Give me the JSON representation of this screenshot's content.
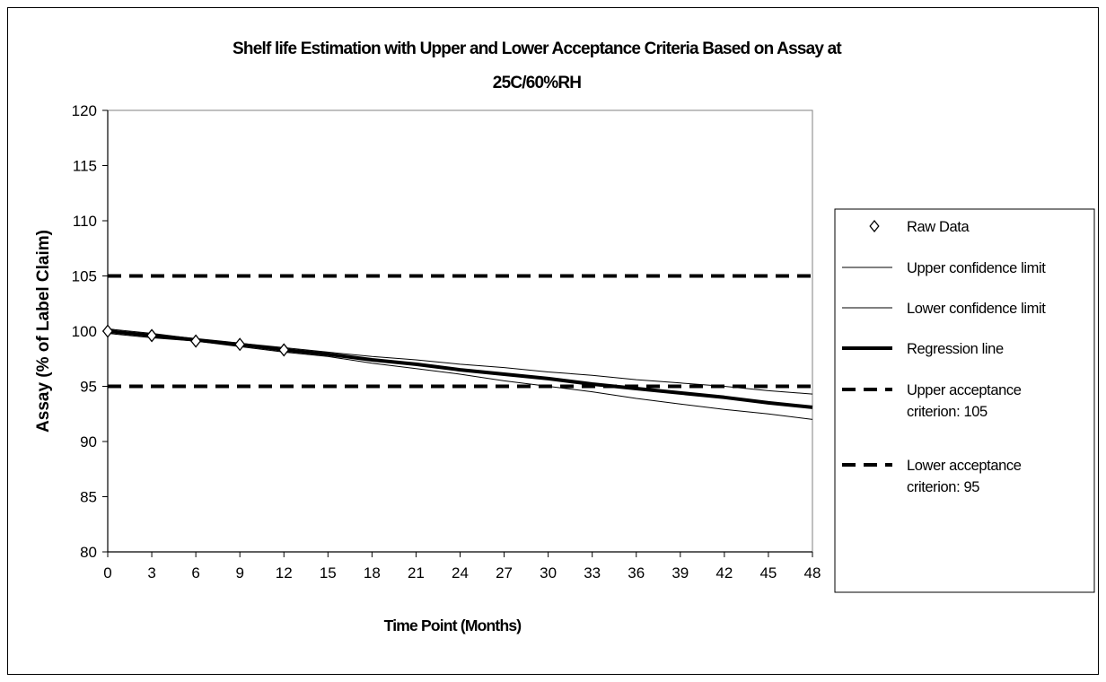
{
  "chart_data": {
    "type": "line",
    "title_lines": [
      "Shelf life Estimation with Upper and Lower Acceptance Criteria Based on Assay at",
      "25C/60%RH"
    ],
    "xlabel": "Time Point (Months)",
    "ylabel": "Assay (% of Label Claim)",
    "xlim": [
      0,
      48
    ],
    "ylim": [
      80,
      120
    ],
    "x_ticks": [
      0,
      3,
      6,
      9,
      12,
      15,
      18,
      21,
      24,
      27,
      30,
      33,
      36,
      39,
      42,
      45,
      48
    ],
    "y_ticks": [
      80,
      85,
      90,
      95,
      100,
      105,
      110,
      115,
      120
    ],
    "grid": false,
    "legend_position": "right",
    "series": [
      {
        "name": "Raw Data",
        "style": "marker-diamond",
        "color": "#000000",
        "x": [
          0,
          3,
          6,
          9,
          12
        ],
        "y": [
          100.0,
          99.6,
          99.1,
          98.8,
          98.3
        ]
      },
      {
        "name": "Upper confidence limit",
        "style": "thin",
        "color": "#000000",
        "x": [
          0,
          3,
          6,
          9,
          12,
          15,
          18,
          21,
          24,
          27,
          30,
          33,
          36,
          39,
          42,
          45,
          48
        ],
        "y": [
          100.2,
          99.8,
          99.3,
          98.9,
          98.5,
          98.1,
          97.7,
          97.4,
          97.0,
          96.7,
          96.3,
          96.0,
          95.6,
          95.3,
          95.0,
          94.6,
          94.3
        ]
      },
      {
        "name": "Lower confidence limit",
        "style": "thin",
        "color": "#000000",
        "x": [
          0,
          3,
          6,
          9,
          12,
          15,
          18,
          21,
          24,
          27,
          30,
          33,
          36,
          39,
          42,
          45,
          48
        ],
        "y": [
          99.8,
          99.4,
          99.1,
          98.6,
          98.1,
          97.7,
          97.1,
          96.6,
          96.1,
          95.5,
          95.0,
          94.5,
          93.9,
          93.4,
          92.9,
          92.5,
          92.0
        ]
      },
      {
        "name": "Regression line",
        "style": "thick",
        "color": "#000000",
        "x": [
          0,
          3,
          6,
          9,
          12,
          15,
          18,
          21,
          24,
          27,
          30,
          33,
          36,
          39,
          42,
          45,
          48
        ],
        "y": [
          100.0,
          99.6,
          99.2,
          98.8,
          98.3,
          97.9,
          97.4,
          97.0,
          96.5,
          96.1,
          95.7,
          95.2,
          94.8,
          94.4,
          94.0,
          93.5,
          93.1
        ]
      },
      {
        "name": "Upper acceptance criterion: 105",
        "legend_lines": [
          "Upper acceptance",
          "criterion: 105"
        ],
        "style": "thick-dashed",
        "color": "#000000",
        "x": [
          0,
          48
        ],
        "y": [
          105,
          105
        ]
      },
      {
        "name": "Lower acceptance criterion: 95",
        "legend_lines": [
          "Lower acceptance",
          "criterion: 95"
        ],
        "style": "thick-dashed",
        "color": "#000000",
        "x": [
          0,
          48
        ],
        "y": [
          95,
          95
        ]
      }
    ]
  }
}
